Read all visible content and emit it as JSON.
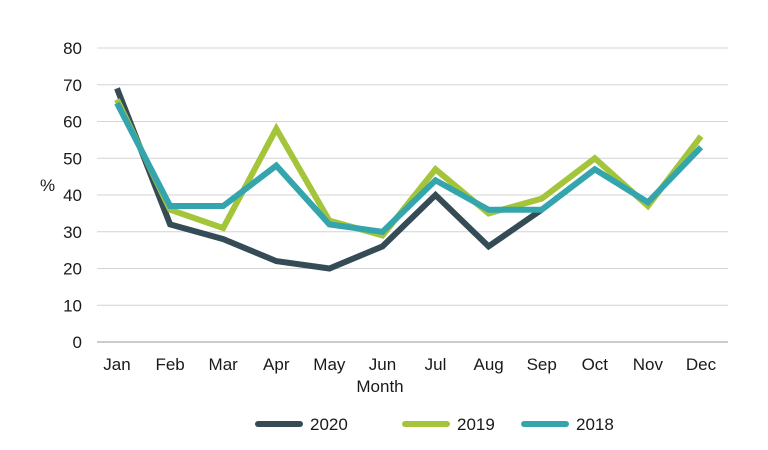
{
  "chart_data": {
    "type": "line",
    "title": "",
    "xlabel": "Month",
    "ylabel": "%",
    "categories": [
      "Jan",
      "Feb",
      "Mar",
      "Apr",
      "May",
      "Jun",
      "Jul",
      "Aug",
      "Sep",
      "Oct",
      "Nov",
      "Dec"
    ],
    "ylim": [
      0,
      80
    ],
    "yticks": [
      "0",
      "10",
      "20",
      "30",
      "40",
      "50",
      "60",
      "70",
      "80"
    ],
    "grid": true,
    "legend_position": "bottom",
    "series": [
      {
        "name": "2020",
        "color": "#354c56",
        "values": [
          69,
          32,
          28,
          22,
          20,
          26,
          40,
          26,
          36,
          null,
          null,
          null
        ]
      },
      {
        "name": "2019",
        "color": "#a4c439",
        "values": [
          66,
          36,
          31,
          58,
          33,
          29,
          47,
          35,
          39,
          50,
          37,
          56
        ]
      },
      {
        "name": "2018",
        "color": "#35a5ad",
        "values": [
          65,
          37,
          37,
          48,
          32,
          30,
          44,
          36,
          36,
          47,
          38,
          53
        ]
      }
    ]
  }
}
